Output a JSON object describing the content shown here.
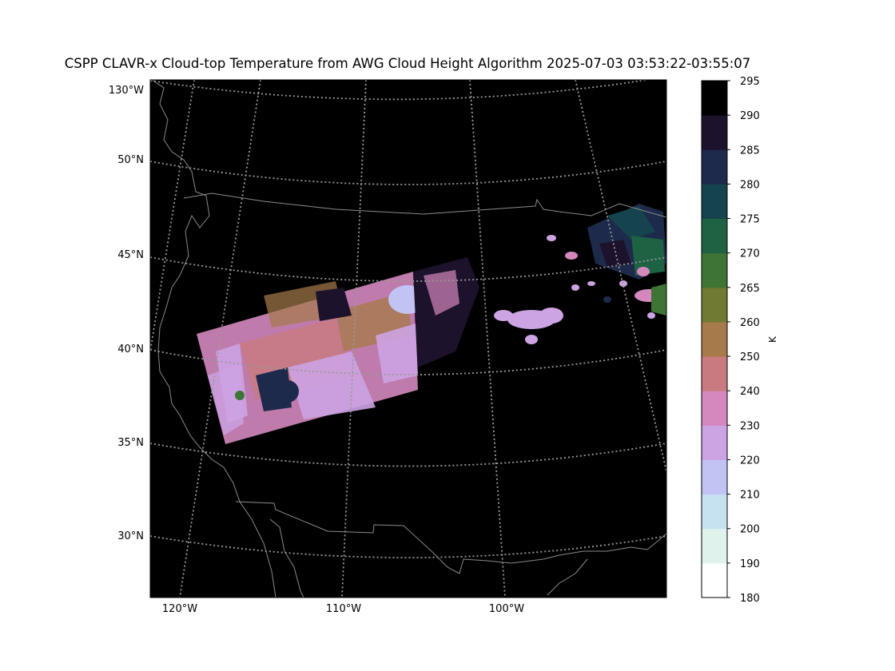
{
  "title": "CSPP CLAVR-x Cloud-top Temperature from AWG Cloud Height Algorithm 2025-07-03 03:53:22-03:55:07",
  "lat_labels": [
    "130°W",
    "50°N",
    "45°N",
    "40°N",
    "35°N",
    "30°N"
  ],
  "lon_labels": [
    "120°W",
    "110°W",
    "100°W"
  ],
  "colorbar": {
    "unit": "K",
    "ticks": [
      "295",
      "290",
      "285",
      "280",
      "275",
      "270",
      "265",
      "260",
      "250",
      "240",
      "230",
      "220",
      "210",
      "200",
      "190",
      "180"
    ],
    "colors": [
      "#ffffff",
      "#dff2ec",
      "#c6e2f1",
      "#c3c3f3",
      "#cca3e3",
      "#d488be",
      "#c87a80",
      "#a77a4c",
      "#707a32",
      "#3e7434",
      "#1e6244",
      "#15444f",
      "#1d2a4b",
      "#1d122b",
      "#000000"
    ]
  },
  "map": {
    "background": "#000000",
    "border_color": "#8a8a8a",
    "graticule_color": "#9a9a9a"
  }
}
